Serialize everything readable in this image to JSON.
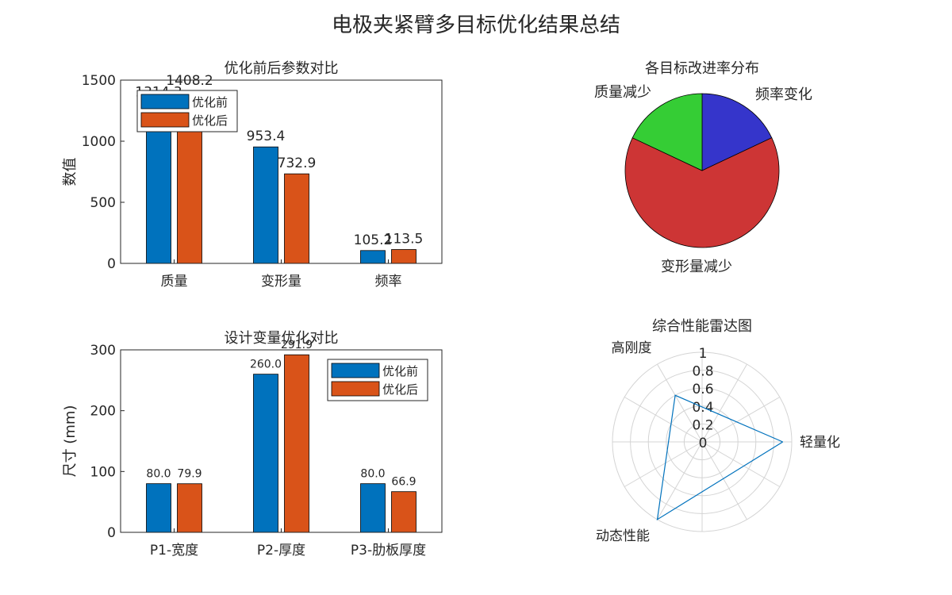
{
  "figure_title": "电极夹紧臂多目标优化结果总结",
  "colors": {
    "before": "#0072BD",
    "after": "#D95319",
    "pie": [
      "#3535CB",
      "#CD3535",
      "#35CD35"
    ],
    "radar_line": "#0072BD"
  },
  "chart_data": [
    {
      "type": "bar",
      "title": "优化前后参数对比",
      "ylabel": "数值",
      "xlabel": "",
      "categories": [
        "质量",
        "变形量",
        "频率"
      ],
      "ylim": [
        0,
        1500
      ],
      "yticks": [
        0,
        500,
        1000,
        1500
      ],
      "series": [
        {
          "name": "优化前",
          "values": [
            1314.3,
            953.4,
            105.2
          ],
          "labels": [
            "1314.3",
            "953.4",
            "105.2"
          ]
        },
        {
          "name": "优化后",
          "values": [
            1408.2,
            732.9,
            113.5
          ],
          "labels": [
            "1408.2",
            "732.9",
            "113.5"
          ]
        }
      ],
      "legend": "top-left",
      "grid": false
    },
    {
      "type": "pie",
      "title": "各目标改进率分布",
      "labels": [
        "频率变化",
        "变形量减少",
        "质量减少"
      ],
      "values": [
        0.18,
        0.64,
        0.18
      ]
    },
    {
      "type": "bar",
      "title": "设计变量优化对比",
      "ylabel": "尺寸 (mm)",
      "xlabel": "",
      "categories": [
        "P1-宽度",
        "P2-厚度",
        "P3-肋板厚度"
      ],
      "ylim": [
        0,
        300
      ],
      "yticks": [
        0,
        100,
        200,
        300
      ],
      "series": [
        {
          "name": "优化前",
          "values": [
            80.0,
            260.0,
            80.0
          ],
          "labels": [
            "80.0",
            "260.0",
            "80.0"
          ]
        },
        {
          "name": "优化后",
          "values": [
            79.9,
            291.9,
            66.9
          ],
          "labels": [
            "79.9",
            "291.9",
            "66.9"
          ]
        }
      ],
      "legend": "top-right",
      "grid": false
    },
    {
      "type": "radar",
      "title": "综合性能雷达图",
      "axes": [
        "轻量化",
        "高刚度",
        "动态性能"
      ],
      "axis_angles_deg": [
        0,
        120,
        240
      ],
      "rlim": [
        0,
        1
      ],
      "rticks": [
        "0",
        "0.2",
        "0.4",
        "0.6",
        "0.8",
        "1"
      ],
      "values": [
        0.9,
        0.6,
        1.0
      ]
    }
  ]
}
